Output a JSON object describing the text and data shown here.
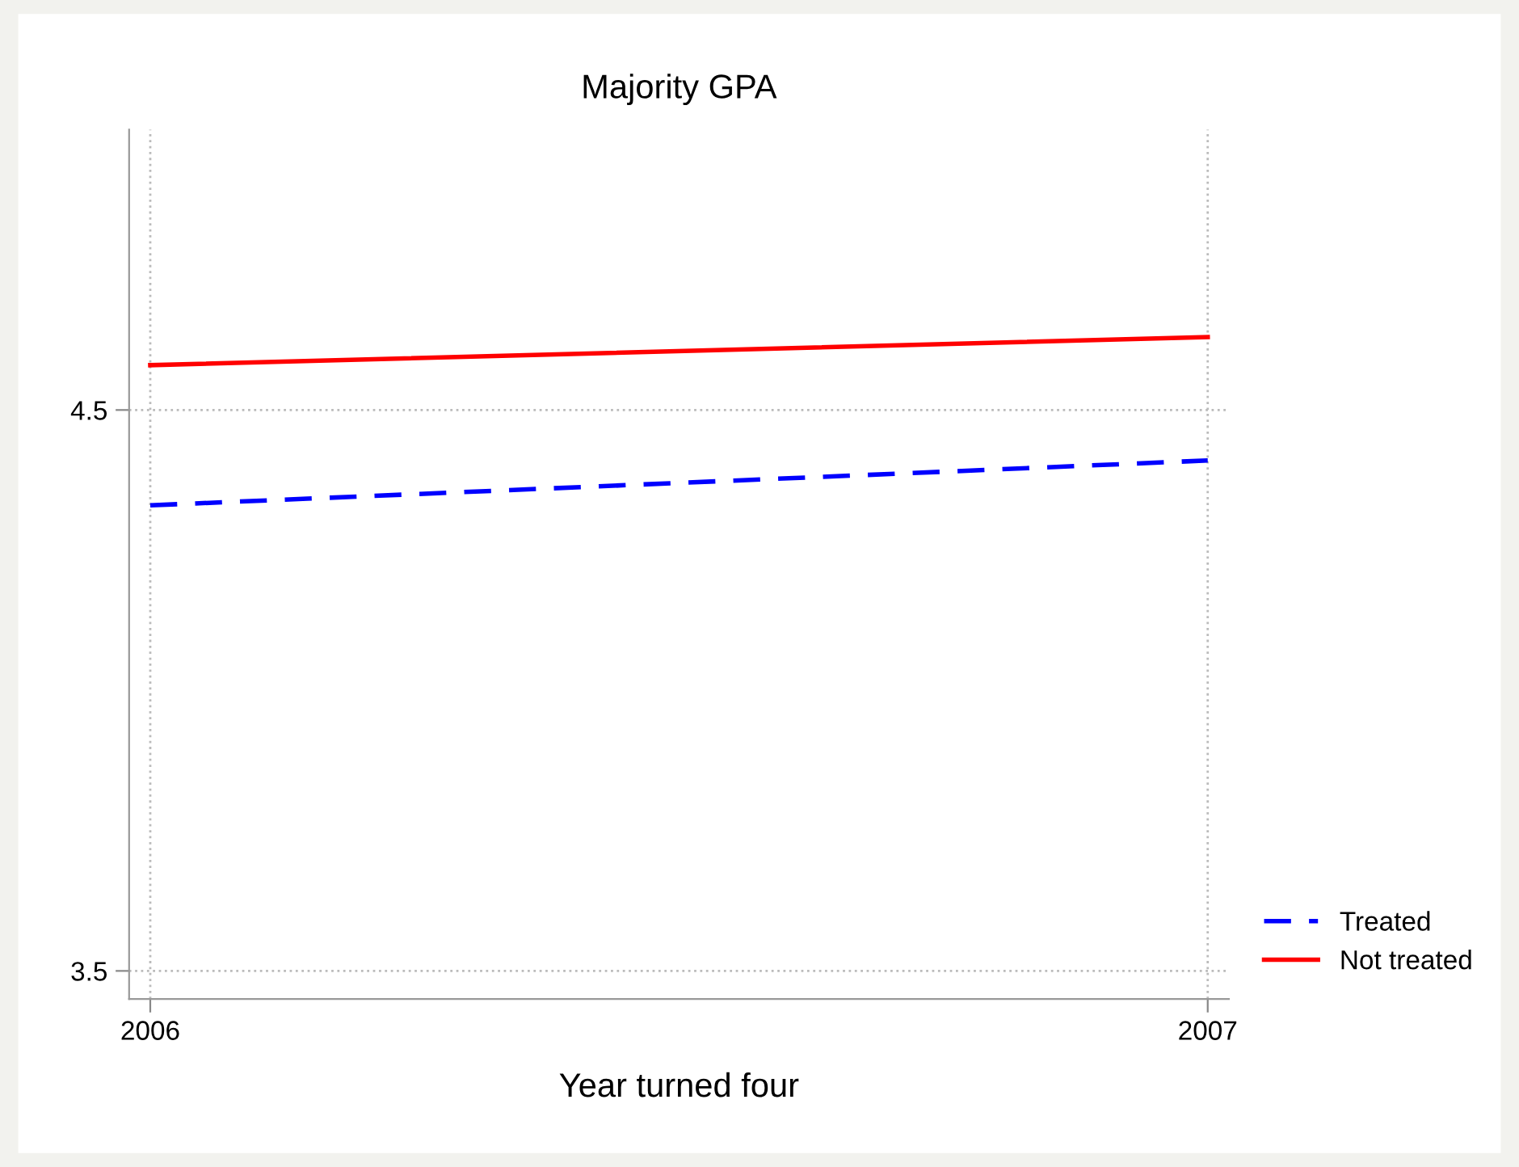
{
  "chart_data": {
    "type": "line",
    "title": "Majority GPA",
    "xlabel": "Year turned four",
    "x": [
      2006,
      2007
    ],
    "series": [
      {
        "name": "Treated",
        "color": "#0000ff",
        "values": [
          4.33,
          4.41
        ],
        "line_style": "dashed"
      },
      {
        "name": "Not treated",
        "color": "#ff0000",
        "values": [
          4.58,
          4.63
        ],
        "line_style": "solid"
      }
    ],
    "xlim": [
      2005.98,
      2007.02
    ],
    "xticks": [
      2006,
      2007
    ],
    "ylim": [
      3.45,
      5.0
    ],
    "yticks": [
      3.5,
      4.5
    ],
    "grid": true,
    "legend": "bottom right",
    "marker": "none"
  }
}
